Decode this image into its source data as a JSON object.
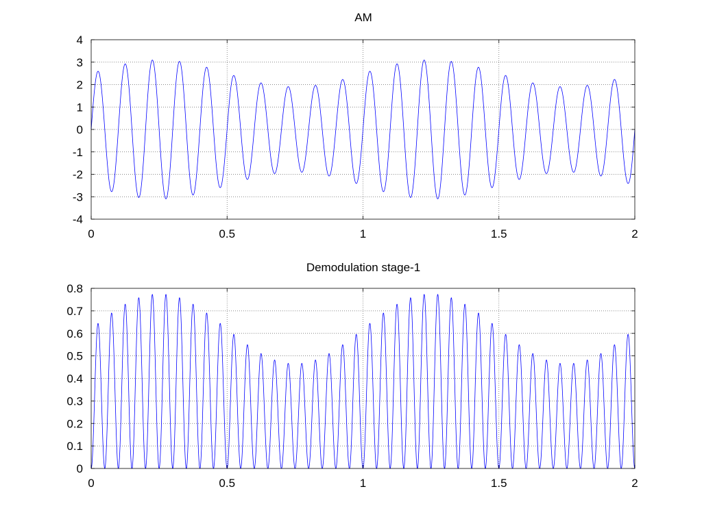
{
  "chart_data": [
    {
      "type": "line",
      "title": "AM",
      "xlabel": "",
      "ylabel": "",
      "xlim": [
        0,
        2
      ],
      "ylim": [
        -4,
        4
      ],
      "xticks": [
        "0",
        "0.5",
        "1",
        "1.5",
        "2"
      ],
      "xtick_values": [
        0,
        0.5,
        1,
        1.5,
        2
      ],
      "yticks": [
        "-4",
        "-3",
        "-2",
        "-1",
        "0",
        "1",
        "2",
        "3",
        "4"
      ],
      "ytick_values": [
        -4,
        -3,
        -2,
        -1,
        0,
        1,
        2,
        3,
        4
      ],
      "grid": true,
      "color": "#0000ff",
      "series": [
        {
          "function": "(2.5 + 0.6*sin(2*pi*1*x)) * sin(2*pi*10*x)",
          "envelope_period": 1,
          "carrier_frequency": 10,
          "amplitude_range": [
            1.9,
            3.1
          ]
        }
      ]
    },
    {
      "type": "line",
      "title": "Demodulation stage-1",
      "xlabel": "",
      "ylabel": "",
      "xlim": [
        0,
        2
      ],
      "ylim": [
        0,
        0.8
      ],
      "xticks": [
        "0",
        "0.5",
        "1",
        "1.5",
        "2"
      ],
      "xtick_values": [
        0,
        0.5,
        1,
        1.5,
        2
      ],
      "yticks": [
        "0",
        "0.1",
        "0.2",
        "0.3",
        "0.4",
        "0.5",
        "0.6",
        "0.7",
        "0.8"
      ],
      "ytick_values": [
        0,
        0.1,
        0.2,
        0.3,
        0.4,
        0.5,
        0.6,
        0.7,
        0.8
      ],
      "grid": true,
      "color": "#0000ff",
      "series": [
        {
          "function": "(0.62 + 0.155*sin(2*pi*1*x)) * sin(2*pi*10*x)^2",
          "envelope_period": 1,
          "peak_frequency": 20,
          "amplitude_range": [
            0.47,
            0.78
          ]
        }
      ]
    }
  ]
}
